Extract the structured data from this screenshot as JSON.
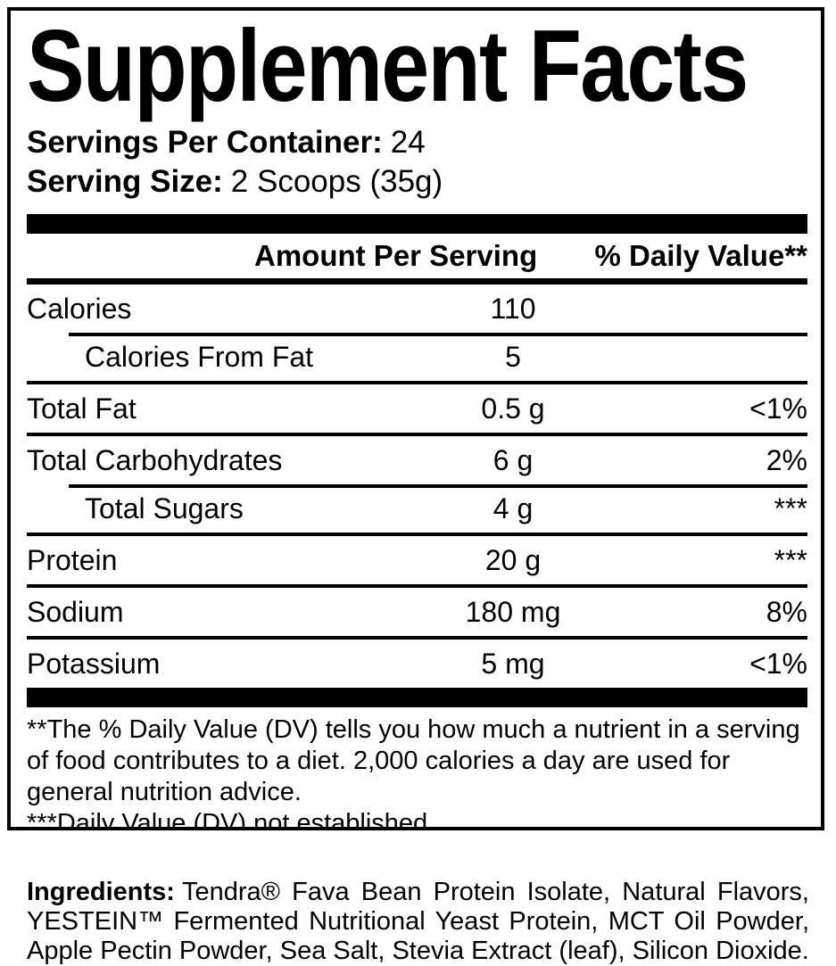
{
  "label": {
    "title": "Supplement Facts",
    "servings_per_container_label": "Servings Per Container:",
    "servings_per_container_value": "24",
    "serving_size_label": "Serving Size:",
    "serving_size_value": "2 Scoops (35g)",
    "header": {
      "amount_col": "Amount Per Serving",
      "dv_col": "% Daily Value**"
    },
    "rows": [
      {
        "name": "Calories",
        "amount": "110",
        "dv": "",
        "indent": false,
        "sep_above": "none"
      },
      {
        "name": "Calories From Fat",
        "amount": "5",
        "dv": "",
        "indent": true,
        "sep_above": "indent"
      },
      {
        "name": "Total Fat",
        "amount": "0.5 g",
        "dv": "<1%",
        "indent": false,
        "sep_above": "full"
      },
      {
        "name": "Total Carbohydrates",
        "amount": "6 g",
        "dv": "2%",
        "indent": false,
        "sep_above": "full"
      },
      {
        "name": "Total Sugars",
        "amount": "4 g",
        "dv": "***",
        "indent": true,
        "sep_above": "indent"
      },
      {
        "name": "Protein",
        "amount": "20 g",
        "dv": "***",
        "indent": false,
        "sep_above": "full"
      },
      {
        "name": "Sodium",
        "amount": "180 mg",
        "dv": "8%",
        "indent": false,
        "sep_above": "full"
      },
      {
        "name": "Potassium",
        "amount": "5 mg",
        "dv": "<1%",
        "indent": false,
        "sep_above": "full"
      }
    ],
    "footnotes": {
      "daily_value": "**The % Daily Value (DV) tells you how much a nutrient in a serving of food contributes to a diet. 2,000 calories a day are used for general nutrition advice.",
      "not_established": "***Daily Value (DV) not established."
    }
  },
  "ingredients": {
    "label": "Ingredients:",
    "text": "Tendra® Fava Bean Protein Isolate, Natural Flavors, YESTEIN™ Fermented Nutritional Yeast Protein, MCT Oil Powder, Apple Pectin Powder, Sea Salt, Stevia Extract (leaf), Silicon Dioxide."
  },
  "colors": {
    "ink": "#000000",
    "background": "#ffffff"
  }
}
